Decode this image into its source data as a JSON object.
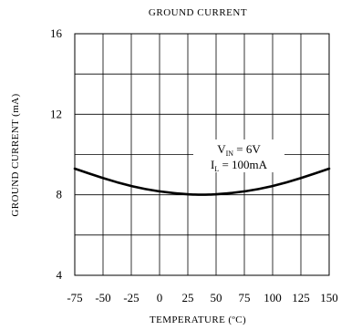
{
  "chart_data": {
    "type": "line",
    "title": "GROUND CURRENT",
    "xlabel": "TEMPERATURE (ºC)",
    "ylabel": "GROUND CURRENT (mA)",
    "xlim": [
      -75,
      150
    ],
    "ylim": [
      4,
      16
    ],
    "x_ticks": [
      "-75",
      "-50",
      "-25",
      "0",
      "25",
      "50",
      "75",
      "100",
      "125",
      "150"
    ],
    "y_ticks": [
      "4",
      "8",
      "12",
      "16"
    ],
    "x_tick_values": [
      -75,
      -50,
      -25,
      0,
      25,
      50,
      75,
      100,
      125,
      150
    ],
    "y_tick_values": [
      4,
      8,
      12,
      16
    ],
    "y_grid_values": [
      4,
      6,
      8,
      10,
      12,
      14,
      16
    ],
    "grid": true,
    "annotation": {
      "line1": {
        "main": "V",
        "sub": "IN",
        "rest": " = 6V"
      },
      "line2": {
        "main": "I",
        "sub": "L",
        "rest": " = 100mA"
      }
    },
    "series": [
      {
        "x": [
          -75,
          -50,
          -25,
          0,
          25,
          37.5,
          50,
          75,
          100,
          125,
          150
        ],
        "values": [
          9.3,
          8.82,
          8.42,
          8.15,
          8.02,
          8.0,
          8.02,
          8.15,
          8.42,
          8.82,
          9.3
        ]
      }
    ]
  }
}
